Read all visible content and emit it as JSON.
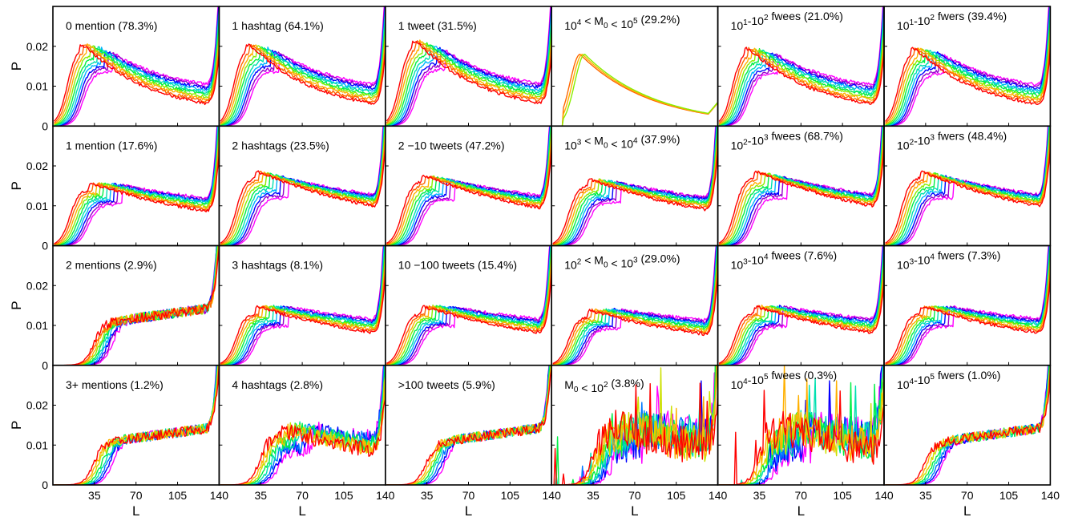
{
  "figure": {
    "ylabel": "P",
    "xlabel": "L",
    "x_ticks": [
      35,
      70,
      105,
      140
    ],
    "y_ticks": [
      0,
      0.01,
      0.02
    ],
    "y_tick_labels": [
      "0",
      "0.01",
      "0.02"
    ],
    "xlim": [
      0,
      140
    ],
    "ylim": [
      0,
      0.03
    ],
    "palette": [
      "#ff00ff",
      "#9900cc",
      "#0000ff",
      "#0077ff",
      "#00b3ff",
      "#00e0b0",
      "#00ee44",
      "#88ee00",
      "#cce000",
      "#ffb000",
      "#ff6600",
      "#ff0000"
    ]
  },
  "chart_data": [
    {
      "type": "line",
      "title": "0 mention (78.3%)",
      "row": 0,
      "col": 0,
      "shape": "early",
      "peak": 0.019,
      "tail": 0.026,
      "n": 10
    },
    {
      "type": "line",
      "title": "1 hashtag (64.1%)",
      "row": 0,
      "col": 1,
      "shape": "early",
      "peak": 0.019,
      "tail": 0.026,
      "n": 10
    },
    {
      "type": "line",
      "title": "1 tweet (31.5%)",
      "row": 0,
      "col": 2,
      "shape": "early",
      "peak": 0.02,
      "tail": 0.025,
      "n": 10
    },
    {
      "type": "line",
      "title": "10^4 < M_0 < 10^5 (29.2%)",
      "row": 0,
      "col": 3,
      "shape": "single",
      "peak": 0.018,
      "tail": 0.004,
      "n": 3
    },
    {
      "type": "line",
      "title": "10^1-10^2 fwees (21.0%)",
      "row": 0,
      "col": 4,
      "shape": "early",
      "peak": 0.018,
      "tail": 0.026,
      "n": 10
    },
    {
      "type": "line",
      "title": "10^1-10^2 fwers (39.4%)",
      "row": 0,
      "col": 5,
      "shape": "early",
      "peak": 0.018,
      "tail": 0.028,
      "n": 10
    },
    {
      "type": "line",
      "title": "1 mention (17.6%)",
      "row": 1,
      "col": 0,
      "shape": "mid",
      "peak": 0.013,
      "tail": 0.03,
      "n": 10
    },
    {
      "type": "line",
      "title": "2 hashtags (23.5%)",
      "row": 1,
      "col": 1,
      "shape": "mid",
      "peak": 0.016,
      "tail": 0.03,
      "n": 10
    },
    {
      "type": "line",
      "title": "2 −10 tweets (47.2%)",
      "row": 1,
      "col": 2,
      "shape": "mid",
      "peak": 0.015,
      "tail": 0.03,
      "n": 10
    },
    {
      "type": "line",
      "title": "10^3 < M_0 < 10^4 (37.9%)",
      "row": 1,
      "col": 3,
      "shape": "mid",
      "peak": 0.014,
      "tail": 0.03,
      "n": 10
    },
    {
      "type": "line",
      "title": "10^2-10^3 fwees (68.7%)",
      "row": 1,
      "col": 4,
      "shape": "mid",
      "peak": 0.016,
      "tail": 0.03,
      "n": 10
    },
    {
      "type": "line",
      "title": "10^2-10^3 fwers (48.4%)",
      "row": 1,
      "col": 5,
      "shape": "mid",
      "peak": 0.016,
      "tail": 0.03,
      "n": 10
    },
    {
      "type": "line",
      "title": "2 mentions (2.9%)",
      "row": 2,
      "col": 0,
      "shape": "late",
      "peak": 0.012,
      "tail": 0.03,
      "n": 10
    },
    {
      "type": "line",
      "title": "3 hashtags (8.1%)",
      "row": 2,
      "col": 1,
      "shape": "mid",
      "peak": 0.012,
      "tail": 0.03,
      "n": 10
    },
    {
      "type": "line",
      "title": "10 −100 tweets (15.4%)",
      "row": 2,
      "col": 2,
      "shape": "mid",
      "peak": 0.012,
      "tail": 0.03,
      "n": 10
    },
    {
      "type": "line",
      "title": "10^2 < M_0 < 10^3 (29.0%)",
      "row": 2,
      "col": 3,
      "shape": "mid",
      "peak": 0.011,
      "tail": 0.03,
      "n": 10
    },
    {
      "type": "line",
      "title": "10^3-10^4 fwees (7.6%)",
      "row": 2,
      "col": 4,
      "shape": "mid",
      "peak": 0.012,
      "tail": 0.026,
      "n": 10
    },
    {
      "type": "line",
      "title": "10^3-10^4 fwers (7.3%)",
      "row": 2,
      "col": 5,
      "shape": "mid",
      "peak": 0.012,
      "tail": 0.028,
      "n": 10
    },
    {
      "type": "line",
      "title": "3+ mentions (1.2%)",
      "row": 3,
      "col": 0,
      "shape": "late",
      "peak": 0.01,
      "tail": 0.03,
      "n": 8
    },
    {
      "type": "line",
      "title": "4 hashtags (2.8%)",
      "row": 3,
      "col": 1,
      "shape": "noisy",
      "peak": 0.011,
      "tail": 0.03,
      "n": 8
    },
    {
      "type": "line",
      "title": ">100 tweets (5.9%)",
      "row": 3,
      "col": 2,
      "shape": "late",
      "peak": 0.011,
      "tail": 0.03,
      "n": 8
    },
    {
      "type": "line",
      "title": "M_0 < 10^2 (3.8%)",
      "row": 3,
      "col": 3,
      "shape": "verynoisy",
      "peak": 0.012,
      "tail": 0.03,
      "n": 8
    },
    {
      "type": "line",
      "title": "10^4-10^5 fwees (0.3%)",
      "row": 3,
      "col": 4,
      "shape": "verynoisy",
      "peak": 0.012,
      "tail": 0.03,
      "n": 8
    },
    {
      "type": "line",
      "title": "10^4-10^5 fwers (1.0%)",
      "row": 3,
      "col": 5,
      "shape": "late",
      "peak": 0.01,
      "tail": 0.026,
      "n": 8
    }
  ]
}
